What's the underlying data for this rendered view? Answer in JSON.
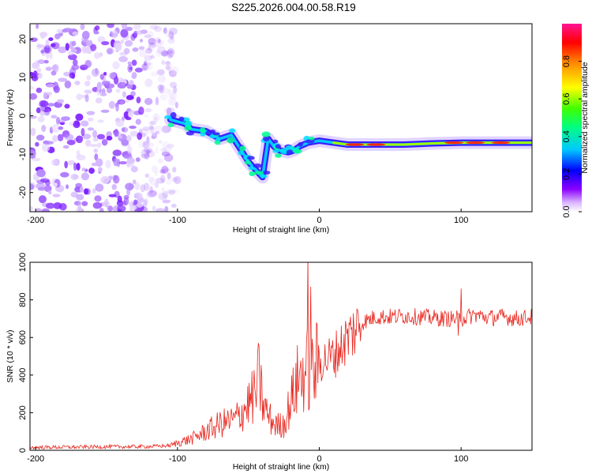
{
  "title": "S225.2026.004.00.58.R19",
  "chart_data": [
    {
      "type": "heatmap",
      "panel": "spectrogram",
      "xlabel": "Height of straight line (km)",
      "ylabel": "Frequency (Hz)",
      "xlim": [
        -204,
        150
      ],
      "ylim": [
        -25,
        24
      ],
      "xticks": [
        -200,
        -100,
        0,
        100
      ],
      "yticks": [
        -20,
        -10,
        0,
        10,
        20
      ],
      "colorbar": {
        "label": "Normalized spectral amplitude",
        "range": [
          0,
          1
        ],
        "ticks": [
          0.0,
          0.2,
          0.4,
          0.6,
          0.8
        ],
        "colormap": [
          "#ffffff",
          "#8b00ff",
          "#0000ff",
          "#00ffff",
          "#00ff00",
          "#ffff00",
          "#ff8000",
          "#ff0000",
          "#ff1493"
        ]
      },
      "ridge": {
        "description": "dominant frequency track (km, Hz)",
        "points": [
          [
            -105,
            -1
          ],
          [
            -95,
            -2
          ],
          [
            -90,
            -3.5
          ],
          [
            -80,
            -4
          ],
          [
            -75,
            -5
          ],
          [
            -70,
            -6
          ],
          [
            -62,
            -5
          ],
          [
            -55,
            -9
          ],
          [
            -50,
            -12
          ],
          [
            -45,
            -14
          ],
          [
            -40,
            -16
          ],
          [
            -36,
            -6
          ],
          [
            -32,
            -8
          ],
          [
            -28,
            -9
          ],
          [
            -22,
            -9.5
          ],
          [
            -18,
            -9
          ],
          [
            -14,
            -8
          ],
          [
            -8,
            -7
          ],
          [
            0,
            -6.5
          ],
          [
            10,
            -7
          ],
          [
            20,
            -7.5
          ],
          [
            40,
            -7.5
          ],
          [
            60,
            -7.5
          ],
          [
            80,
            -7.2
          ],
          [
            100,
            -7
          ],
          [
            120,
            -7
          ],
          [
            150,
            -7
          ]
        ]
      }
    },
    {
      "type": "line",
      "panel": "snr",
      "xlabel": "Height of straight line (km)",
      "ylabel": "SNR (10 * v/v)",
      "xlim": [
        -204,
        150
      ],
      "ylim": [
        0,
        1000
      ],
      "xticks": [
        -200,
        -100,
        0,
        100
      ],
      "yticks": [
        0,
        200,
        400,
        600,
        800,
        1000
      ],
      "series": [
        {
          "name": "SNR",
          "color": "#e8261e",
          "envelope": {
            "x": [
              -204,
              -160,
              -120,
              -105,
              -100,
              -90,
              -80,
              -70,
              -60,
              -55,
              -50,
              -45,
              -42,
              -40,
              -35,
              -30,
              -25,
              -20,
              -15,
              -10,
              -8,
              -7,
              -5,
              0,
              10,
              20,
              30,
              40,
              50,
              60,
              70,
              80,
              90,
              100,
              110,
              120,
              130,
              140,
              150
            ],
            "y": [
              15,
              18,
              20,
              25,
              40,
              60,
              100,
              140,
              160,
              200,
              250,
              300,
              380,
              250,
              170,
              130,
              140,
              260,
              380,
              420,
              430,
              420,
              410,
              470,
              500,
              600,
              680,
              710,
              710,
              715,
              710,
              705,
              700,
              700,
              720,
              705,
              710,
              700,
              710
            ]
          },
          "spikes": [
            [
              -43,
              570
            ],
            [
              -8,
              1040
            ],
            [
              -6,
              870
            ],
            [
              100,
              860
            ],
            [
              98,
              610
            ]
          ]
        }
      ]
    }
  ]
}
